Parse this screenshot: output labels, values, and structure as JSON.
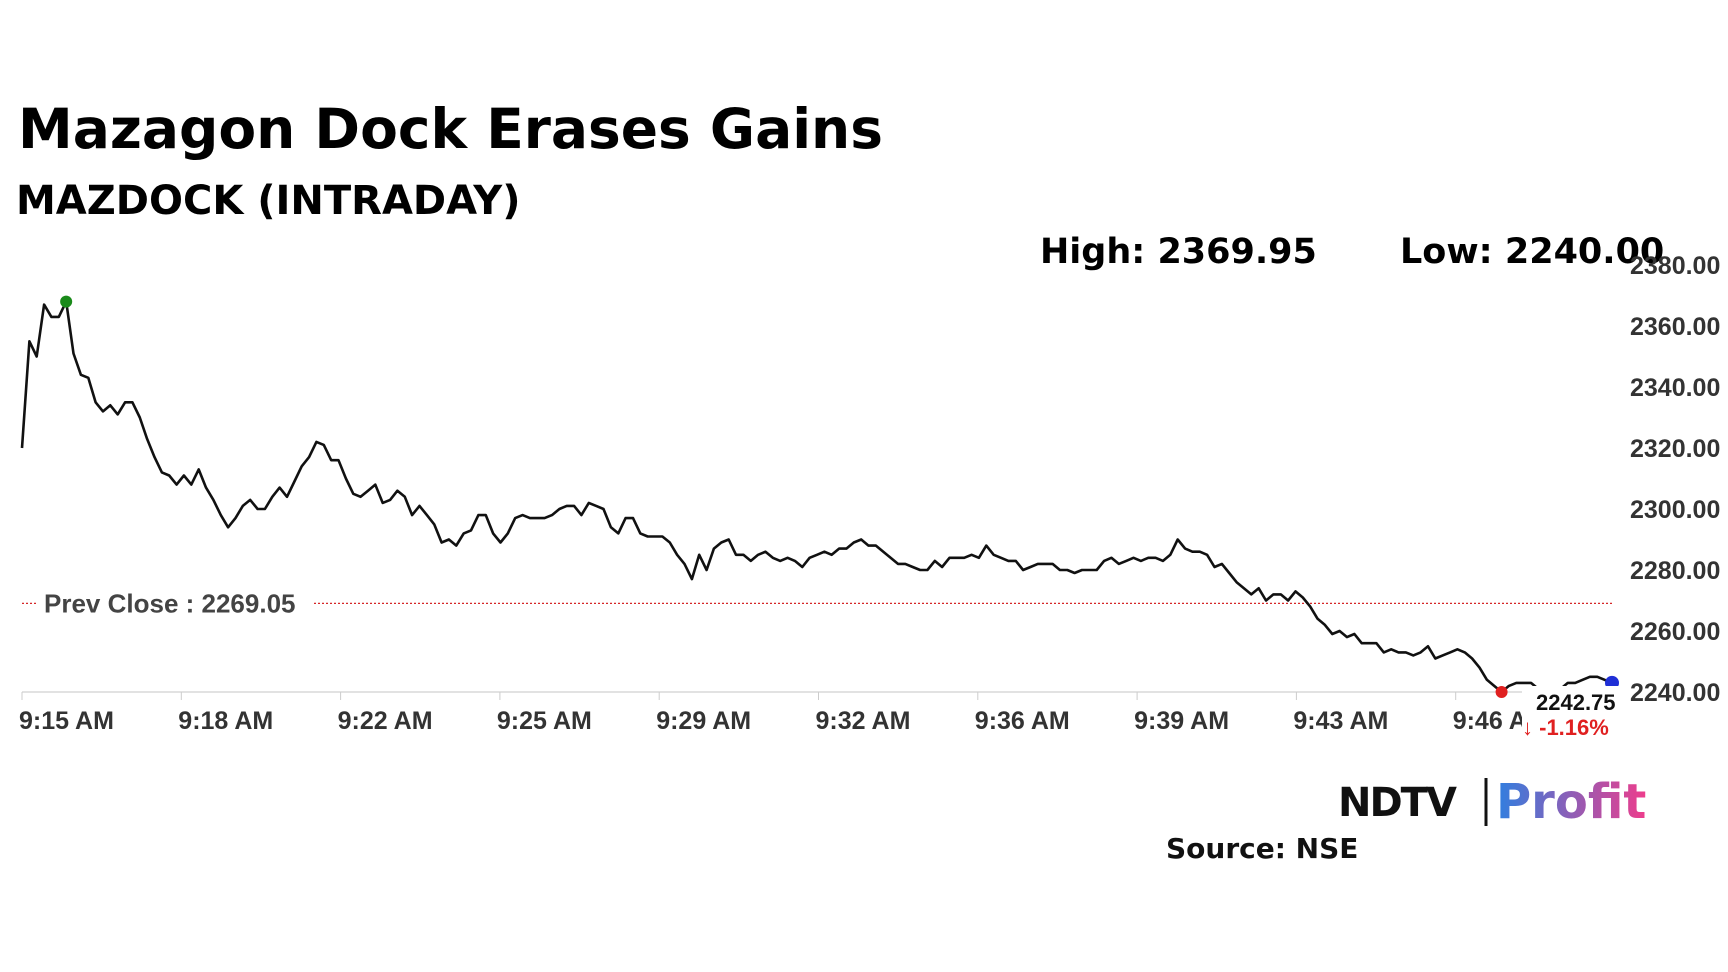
{
  "header": {
    "title": "Mazagon Dock Erases Gains",
    "subtitle": "MAZDOCK (INTRADAY)",
    "high_text": "High: 2369.95",
    "low_text": "Low: 2240.00"
  },
  "prev_close_label": "Prev Close : 2269.05",
  "last_price_label": "2242.75",
  "change_label": "↓ -1.16%",
  "source_label": "Source: NSE",
  "logo": {
    "part1": "NDTV",
    "part2": "Profit"
  },
  "colors": {
    "line": "#111111",
    "prev_close": "#d62728",
    "high_marker": "#1a8a1a",
    "low_marker": "#e02020",
    "last_marker": "#1f2fd6",
    "change": "#e02020",
    "logo_profit_start": "#2f7fe0",
    "logo_profit_end": "#ee3d8c"
  },
  "chart_data": {
    "type": "line",
    "title": "Mazagon Dock Erases Gains",
    "subtitle": "MAZDOCK (INTRADAY)",
    "xlabel": "",
    "ylabel": "",
    "ylim": [
      2240,
      2380
    ],
    "y_ticks": [
      "2380.00",
      "2360.00",
      "2340.00",
      "2320.00",
      "2300.00",
      "2280.00",
      "2260.00",
      "2240.00"
    ],
    "x_ticks": [
      "9:15 AM",
      "9:18 AM",
      "9:22 AM",
      "9:25 AM",
      "9:29 AM",
      "9:32 AM",
      "9:36 AM",
      "9:39 AM",
      "9:43 AM",
      "9:46 AM"
    ],
    "prev_close": 2269.05,
    "high": 2369.95,
    "low": 2240.0,
    "last": 2242.75,
    "change_pct": -1.16,
    "series": [
      {
        "values": [
          2320,
          2355,
          2350,
          2367,
          2363,
          2363,
          2368,
          2351,
          2344,
          2343,
          2335,
          2332,
          2334,
          2331,
          2335,
          2335,
          2330,
          2323,
          2317,
          2312,
          2311,
          2308,
          2311,
          2308,
          2313,
          2307,
          2303,
          2298,
          2294,
          2297,
          2301,
          2303,
          2300,
          2300,
          2304,
          2307,
          2304,
          2309,
          2314,
          2317,
          2322,
          2321,
          2316,
          2316,
          2310,
          2305,
          2304,
          2306,
          2308,
          2302,
          2303,
          2306,
          2304,
          2298,
          2301,
          2298,
          2295,
          2289,
          2290,
          2288,
          2292,
          2293,
          2298,
          2298,
          2292,
          2289,
          2292,
          2297,
          2298,
          2297,
          2297,
          2297,
          2298,
          2300,
          2301,
          2301,
          2298,
          2302,
          2301,
          2300,
          2294,
          2292,
          2297,
          2297,
          2292,
          2291,
          2291,
          2291,
          2289,
          2285,
          2282,
          2277,
          2285,
          2280,
          2287,
          2289,
          2290,
          2285,
          2285,
          2283,
          2285,
          2286,
          2284,
          2283,
          2284,
          2283,
          2281,
          2284,
          2285,
          2286,
          2285,
          2287,
          2287,
          2289,
          2290,
          2288,
          2288,
          2286,
          2284,
          2282,
          2282,
          2281,
          2280,
          2280,
          2283,
          2281,
          2284,
          2284,
          2284,
          2285,
          2284,
          2288,
          2285,
          2284,
          2283,
          2283,
          2280,
          2281,
          2282,
          2282,
          2282,
          2280,
          2280,
          2279,
          2280,
          2280,
          2280,
          2283,
          2284,
          2282,
          2283,
          2284,
          2283,
          2284,
          2284,
          2283,
          2285,
          2290,
          2287,
          2286,
          2286,
          2285,
          2281,
          2282,
          2279,
          2276,
          2274,
          2272,
          2274,
          2270,
          2272,
          2272,
          2270,
          2273,
          2271,
          2268,
          2264,
          2262,
          2259,
          2260,
          2258,
          2259,
          2256,
          2256,
          2256,
          2253,
          2254,
          2253,
          2253,
          2252,
          2253,
          2255,
          2251,
          2252,
          2253,
          2254,
          2253,
          2251,
          2248,
          2244,
          2242,
          2240,
          2242,
          2243,
          2243,
          2243,
          2241,
          2241,
          2241,
          2241,
          2243,
          2243,
          2244,
          2245,
          2245,
          2244,
          2243
        ]
      }
    ]
  }
}
